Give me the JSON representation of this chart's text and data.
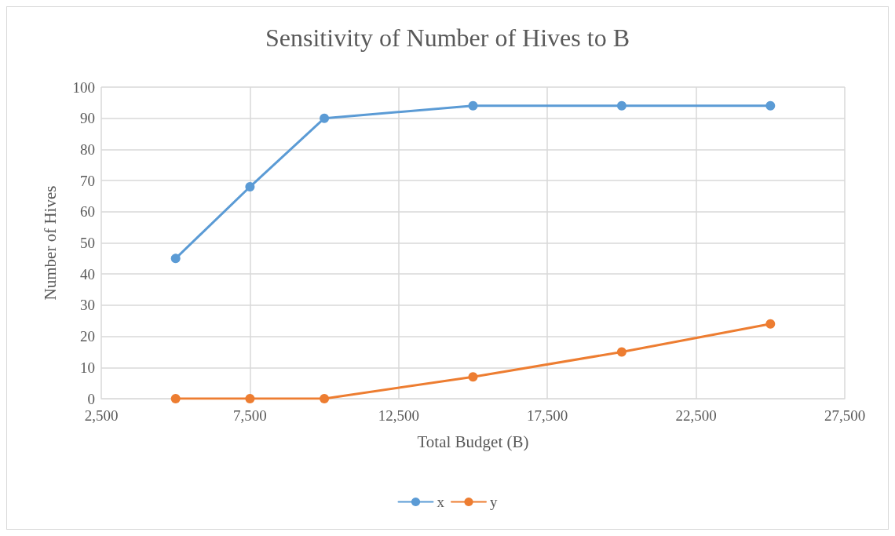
{
  "chart_data": {
    "type": "line",
    "title": "Sensitivity of Number of Hives to B",
    "xlabel": "Total Budget (B)",
    "ylabel": "Number of Hives",
    "x": [
      5000,
      7500,
      10000,
      15000,
      20000,
      25000
    ],
    "series": [
      {
        "name": "x",
        "color": "#5b9bd5",
        "values": [
          45,
          68,
          90,
          94,
          94,
          94
        ]
      },
      {
        "name": "y",
        "color": "#ed7d31",
        "values": [
          0,
          0,
          0,
          7,
          15,
          24
        ]
      }
    ],
    "xlim": [
      2500,
      27500
    ],
    "xticks": [
      {
        "value": 2500,
        "label": "2,500"
      },
      {
        "value": 7500,
        "label": "7,500"
      },
      {
        "value": 12500,
        "label": "12,500"
      },
      {
        "value": 17500,
        "label": "17,500"
      },
      {
        "value": 22500,
        "label": "22,500"
      },
      {
        "value": 27500,
        "label": "27,500"
      }
    ],
    "ylim": [
      0,
      100
    ],
    "yticks": [
      0,
      10,
      20,
      30,
      40,
      50,
      60,
      70,
      80,
      90,
      100
    ],
    "grid": true,
    "legend": "bottom",
    "marker": "circle",
    "line_style": "solid"
  }
}
